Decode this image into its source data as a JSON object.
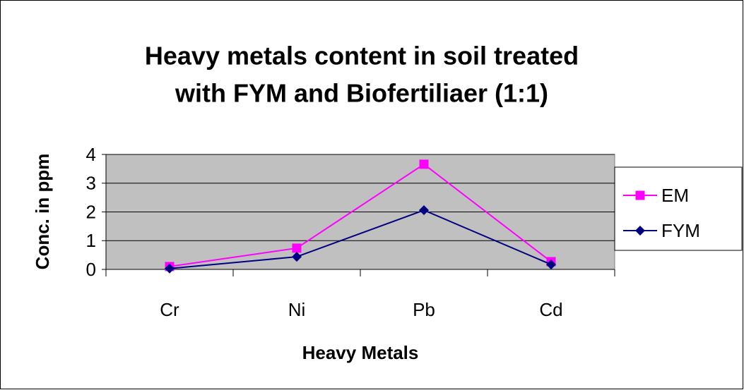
{
  "chart_data": {
    "type": "line",
    "title": [
      "Heavy metals content in soil treated",
      "with FYM and Biofertiliaer (1:1)"
    ],
    "x_label": "Heavy Metals",
    "y_label": "Conc. in ppm",
    "categories": [
      "Cr",
      "Ni",
      "Pb",
      "Cd"
    ],
    "series": [
      {
        "name": "EM",
        "color": "#ff00ff",
        "marker": "square",
        "values": [
          0.1,
          0.74,
          3.66,
          0.27
        ]
      },
      {
        "name": "FYM",
        "color": "#000080",
        "marker": "diamond",
        "values": [
          0.03,
          0.44,
          2.06,
          0.17
        ]
      }
    ],
    "ylim": [
      0,
      4
    ],
    "yticks": [
      0,
      1,
      2,
      3,
      4
    ],
    "grid": true,
    "legend": "right"
  }
}
